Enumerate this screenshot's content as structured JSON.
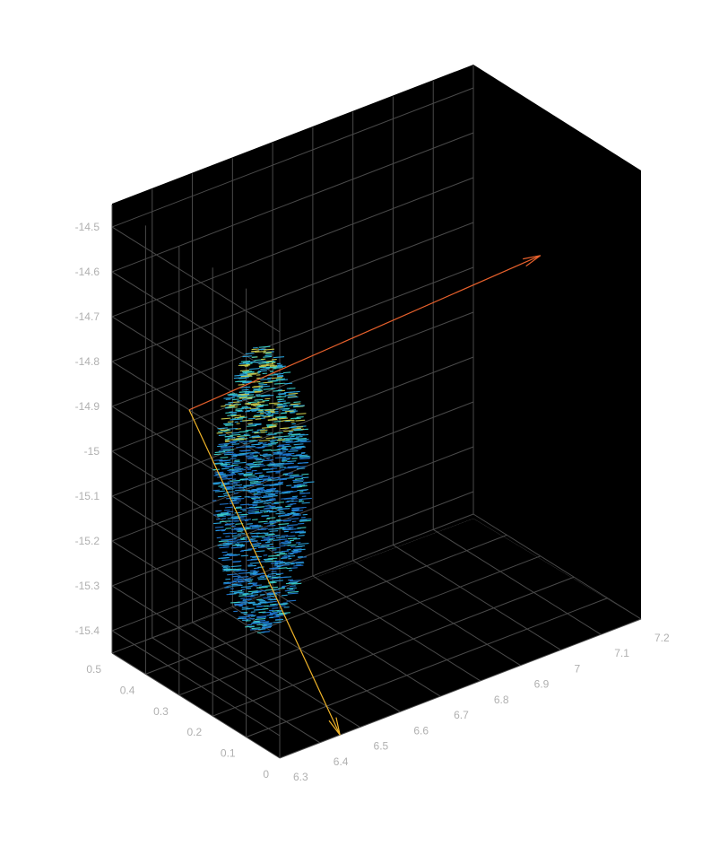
{
  "chart_data": {
    "type": "scatter3d",
    "title": "",
    "xlabel": "",
    "ylabel": "",
    "zlabel": "",
    "grid": true,
    "background": "#000000",
    "tick_color": "#b0b0b0",
    "grid_color": "#4a4a4a",
    "axes": {
      "x": {
        "range": [
          6.3,
          7.2
        ],
        "ticks": [
          6.3,
          6.4,
          6.5,
          6.6,
          6.7,
          6.8,
          6.9,
          7,
          7.1,
          7.2
        ]
      },
      "y": {
        "range": [
          0,
          0.5
        ],
        "ticks": [
          0,
          0.1,
          0.2,
          0.3,
          0.4,
          0.5
        ]
      },
      "z": {
        "range": [
          -15.45,
          -14.45
        ],
        "ticks": [
          -14.5,
          -14.6,
          -14.7,
          -14.8,
          -14.9,
          -15,
          -15.1,
          -15.2,
          -15.3,
          -15.4
        ]
      }
    },
    "point_cloud": {
      "description_values": {
        "y_center": 0.07,
        "z_center": -14.85,
        "y_radius": 0.13,
        "z_radius": 0.32
      },
      "colors": [
        "#1f78d1",
        "#2aa6e0",
        "#3bd0c8",
        "#c8c84a"
      ]
    },
    "vectors": [
      {
        "color": "#e8612c",
        "from": [
          6.3,
          0.27,
          -14.8
        ],
        "to": [
          7.2,
          0.3,
          -14.78
        ]
      },
      {
        "color": "#f0b429",
        "from": [
          6.3,
          0.27,
          -14.8
        ],
        "to": [
          6.45,
          0.0,
          -15.45
        ]
      }
    ]
  }
}
